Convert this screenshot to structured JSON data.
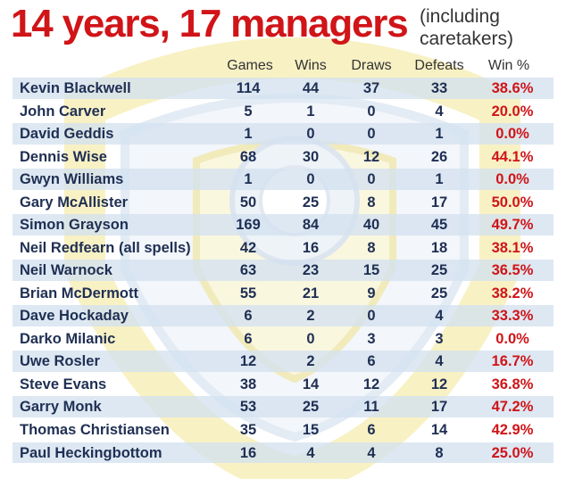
{
  "header": {
    "title": "14 years, 17 managers",
    "subtitle_line1": "(including",
    "subtitle_line2": "caretakers)"
  },
  "columns": {
    "games": "Games",
    "wins": "Wins",
    "draws": "Draws",
    "defeats": "Defeats",
    "win_pct": "Win %"
  },
  "colors": {
    "accent_red": "#d01418",
    "row_text": "#1f2f53",
    "row_shade": "#d4e2f0"
  },
  "chart_data": {
    "type": "table",
    "title": "14 years, 17 managers",
    "subtitle": "(including caretakers)",
    "columns": [
      "Games",
      "Wins",
      "Draws",
      "Defeats",
      "Win %"
    ],
    "rows": [
      {
        "name": "Kevin Blackwell",
        "games": "114",
        "wins": "44",
        "draws": "37",
        "defeats": "33",
        "win_pct": "38.6%"
      },
      {
        "name": "John Carver",
        "games": "5",
        "wins": "1",
        "draws": "0",
        "defeats": "4",
        "win_pct": "20.0%"
      },
      {
        "name": "David Geddis",
        "games": "1",
        "wins": "0",
        "draws": "0",
        "defeats": "1",
        "win_pct": "0.0%"
      },
      {
        "name": "Dennis Wise",
        "games": "68",
        "wins": "30",
        "draws": "12",
        "defeats": "26",
        "win_pct": "44.1%"
      },
      {
        "name": "Gwyn Williams",
        "games": "1",
        "wins": "0",
        "draws": "0",
        "defeats": "1",
        "win_pct": "0.0%"
      },
      {
        "name": "Gary McAllister",
        "games": "50",
        "wins": "25",
        "draws": "8",
        "defeats": "17",
        "win_pct": "50.0%"
      },
      {
        "name": "Simon Grayson",
        "games": "169",
        "wins": "84",
        "draws": "40",
        "defeats": "45",
        "win_pct": "49.7%"
      },
      {
        "name": "Neil Redfearn (all spells)",
        "games": "42",
        "wins": "16",
        "draws": "8",
        "defeats": "18",
        "win_pct": "38.1%"
      },
      {
        "name": "Neil Warnock",
        "games": "63",
        "wins": "23",
        "draws": "15",
        "defeats": "25",
        "win_pct": "36.5%"
      },
      {
        "name": "Brian McDermott",
        "games": "55",
        "wins": "21",
        "draws": "9",
        "defeats": "25",
        "win_pct": "38.2%"
      },
      {
        "name": "Dave Hockaday",
        "games": "6",
        "wins": "2",
        "draws": "0",
        "defeats": "4",
        "win_pct": "33.3%"
      },
      {
        "name": "Darko Milanic",
        "games": "6",
        "wins": "0",
        "draws": "3",
        "defeats": "3",
        "win_pct": "0.0%"
      },
      {
        "name": "Uwe Rosler",
        "games": "12",
        "wins": "2",
        "draws": "6",
        "defeats": "4",
        "win_pct": "16.7%"
      },
      {
        "name": "Steve Evans",
        "games": "38",
        "wins": "14",
        "draws": "12",
        "defeats": "12",
        "win_pct": "36.8%"
      },
      {
        "name": "Garry Monk",
        "games": "53",
        "wins": "25",
        "draws": "11",
        "defeats": "17",
        "win_pct": "47.2%"
      },
      {
        "name": "Thomas Christiansen",
        "games": "35",
        "wins": "15",
        "draws": "6",
        "defeats": "14",
        "win_pct": "42.9%"
      },
      {
        "name": "Paul Heckingbottom",
        "games": "16",
        "wins": "4",
        "draws": "4",
        "defeats": "8",
        "win_pct": "25.0%"
      }
    ]
  }
}
